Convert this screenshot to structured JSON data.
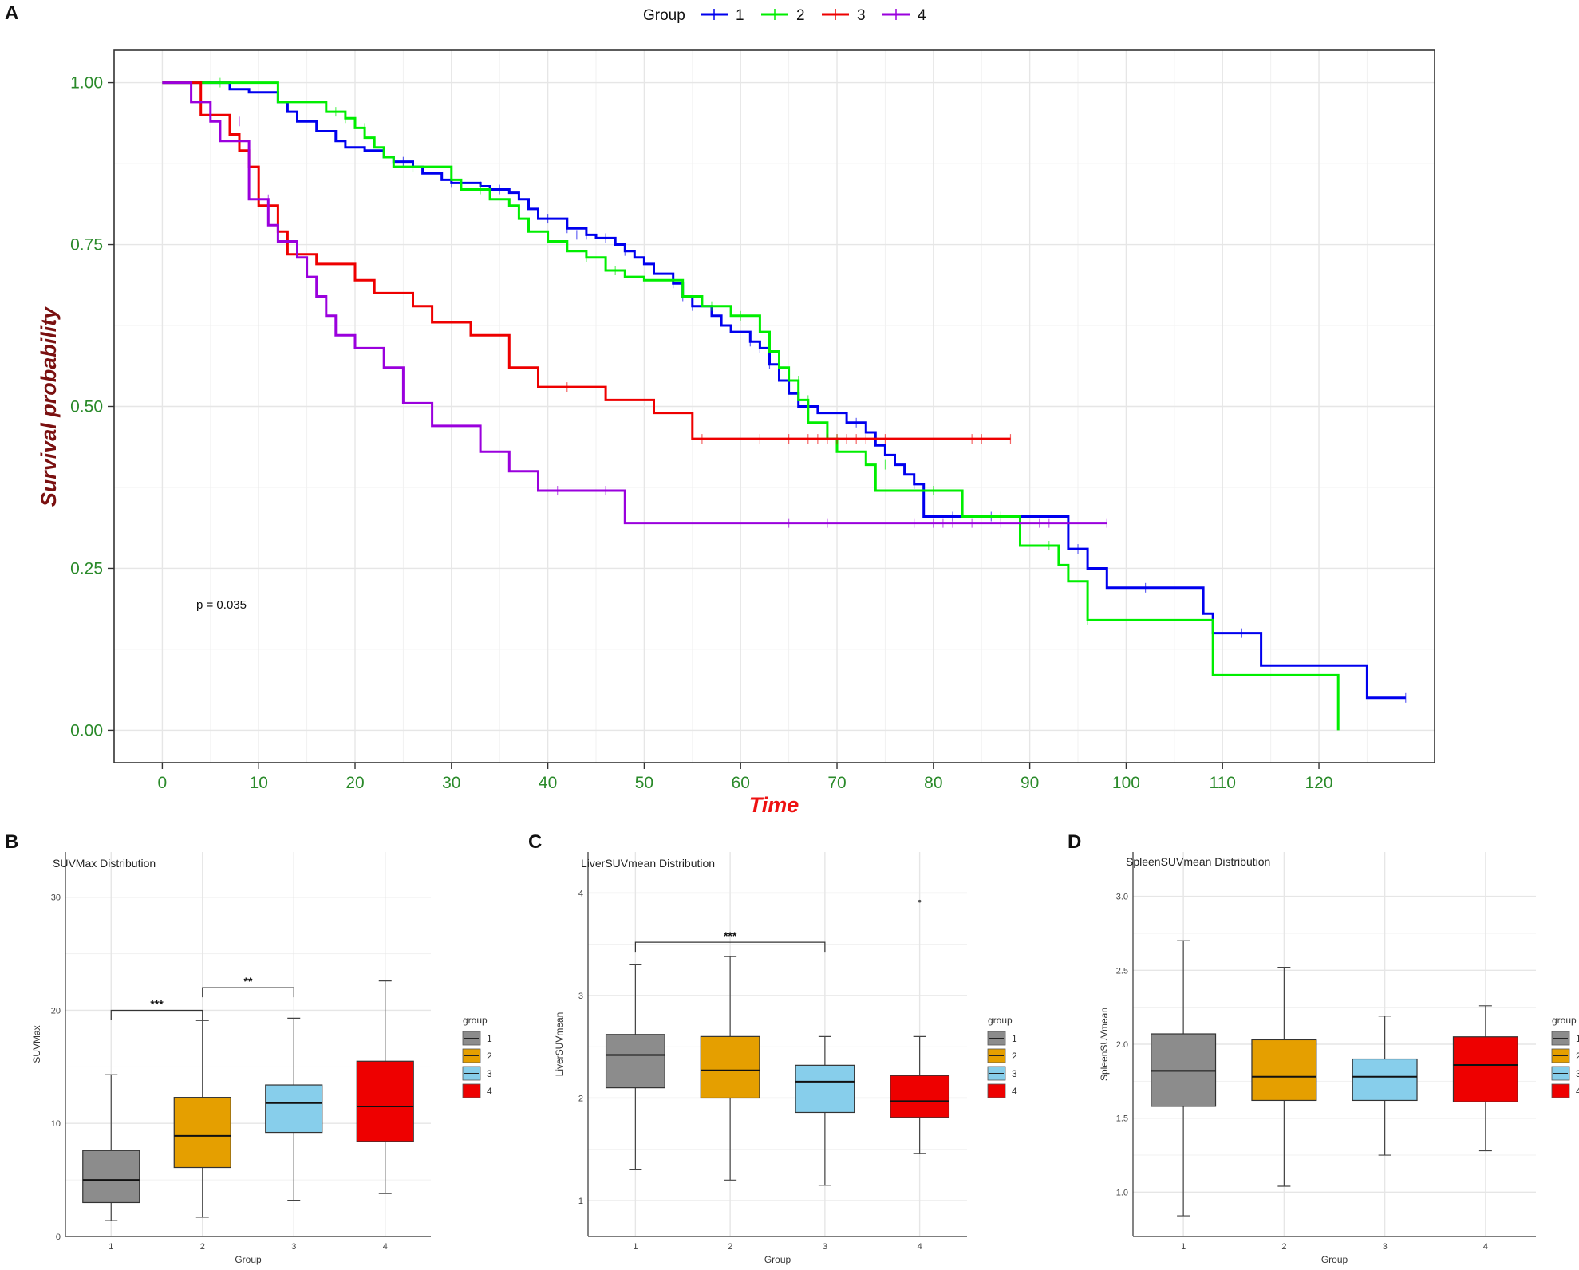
{
  "panel_labels": {
    "a": "A",
    "b": "B",
    "c": "C",
    "d": "D"
  },
  "chart_data": [
    {
      "type": "line",
      "subtype": "kaplan-meier",
      "panel": "A",
      "xlabel": "Time",
      "ylabel": "Survival probability",
      "xlim": [
        -5,
        132
      ],
      "ylim": [
        -0.05,
        1.05
      ],
      "xticks": [
        "0",
        "10",
        "20",
        "30",
        "40",
        "50",
        "60",
        "70",
        "80",
        "90",
        "100",
        "110",
        "120"
      ],
      "yticks": [
        "0.00",
        "0.25",
        "0.50",
        "0.75",
        "1.00"
      ],
      "annotation": "p = 0.035",
      "legend": {
        "title": "Group",
        "position": "top",
        "labels": [
          "1",
          "2",
          "3",
          "4"
        ]
      },
      "series": [
        {
          "name": "1",
          "color": "#0000ee",
          "steps": [
            [
              0,
              1
            ],
            [
              7,
              0.99
            ],
            [
              9,
              0.985
            ],
            [
              12,
              0.97
            ],
            [
              13,
              0.955
            ],
            [
              14,
              0.94
            ],
            [
              16,
              0.925
            ],
            [
              18,
              0.91
            ],
            [
              19,
              0.9
            ],
            [
              21,
              0.895
            ],
            [
              23,
              0.885
            ],
            [
              24,
              0.878
            ],
            [
              26,
              0.87
            ],
            [
              27,
              0.86
            ],
            [
              29,
              0.85
            ],
            [
              30,
              0.845
            ],
            [
              33,
              0.84
            ],
            [
              34,
              0.835
            ],
            [
              36,
              0.83
            ],
            [
              37,
              0.82
            ],
            [
              38,
              0.805
            ],
            [
              39,
              0.79
            ],
            [
              42,
              0.775
            ],
            [
              44,
              0.765
            ],
            [
              45,
              0.76
            ],
            [
              47,
              0.75
            ],
            [
              48,
              0.74
            ],
            [
              49,
              0.73
            ],
            [
              50,
              0.72
            ],
            [
              51,
              0.705
            ],
            [
              53,
              0.69
            ],
            [
              54,
              0.67
            ],
            [
              55,
              0.655
            ],
            [
              57,
              0.64
            ],
            [
              58,
              0.625
            ],
            [
              59,
              0.615
            ],
            [
              61,
              0.6
            ],
            [
              62,
              0.59
            ],
            [
              63,
              0.565
            ],
            [
              64,
              0.54
            ],
            [
              65,
              0.52
            ],
            [
              66,
              0.5
            ],
            [
              68,
              0.49
            ],
            [
              71,
              0.475
            ],
            [
              73,
              0.46
            ],
            [
              74,
              0.44
            ],
            [
              75,
              0.425
            ],
            [
              76,
              0.41
            ],
            [
              77,
              0.395
            ],
            [
              78,
              0.38
            ],
            [
              79,
              0.33
            ],
            [
              94,
              0.28
            ],
            [
              96,
              0.25
            ],
            [
              98,
              0.22
            ],
            [
              108,
              0.18
            ],
            [
              109,
              0.15
            ],
            [
              114,
              0.1
            ],
            [
              125,
              0.05
            ],
            [
              129,
              0.05
            ]
          ],
          "censored": [
            [
              25,
              0.878
            ],
            [
              30,
              0.845
            ],
            [
              33,
              0.84
            ],
            [
              35,
              0.835
            ],
            [
              40,
              0.79
            ],
            [
              42,
              0.775
            ],
            [
              43,
              0.765
            ],
            [
              44,
              0.765
            ],
            [
              46,
              0.76
            ],
            [
              48,
              0.74
            ],
            [
              53,
              0.69
            ],
            [
              54,
              0.67
            ],
            [
              55,
              0.655
            ],
            [
              61,
              0.6
            ],
            [
              62,
              0.59
            ],
            [
              63,
              0.565
            ],
            [
              72,
              0.475
            ],
            [
              78,
              0.38
            ],
            [
              82,
              0.33
            ],
            [
              86,
              0.33
            ],
            [
              95,
              0.28
            ],
            [
              102,
              0.22
            ],
            [
              112,
              0.15
            ],
            [
              129,
              0.05
            ]
          ]
        },
        {
          "name": "2",
          "color": "#00ee00",
          "steps": [
            [
              0,
              1
            ],
            [
              12,
              0.97
            ],
            [
              17,
              0.955
            ],
            [
              19,
              0.945
            ],
            [
              20,
              0.93
            ],
            [
              21,
              0.915
            ],
            [
              22,
              0.9
            ],
            [
              23,
              0.885
            ],
            [
              24,
              0.87
            ],
            [
              30,
              0.85
            ],
            [
              31,
              0.835
            ],
            [
              34,
              0.82
            ],
            [
              36,
              0.81
            ],
            [
              37,
              0.79
            ],
            [
              38,
              0.77
            ],
            [
              40,
              0.755
            ],
            [
              42,
              0.74
            ],
            [
              44,
              0.73
            ],
            [
              46,
              0.71
            ],
            [
              48,
              0.7
            ],
            [
              50,
              0.695
            ],
            [
              54,
              0.67
            ],
            [
              56,
              0.655
            ],
            [
              59,
              0.64
            ],
            [
              62,
              0.615
            ],
            [
              63,
              0.585
            ],
            [
              64,
              0.56
            ],
            [
              65,
              0.54
            ],
            [
              66,
              0.51
            ],
            [
              67,
              0.475
            ],
            [
              69,
              0.45
            ],
            [
              70,
              0.43
            ],
            [
              73,
              0.41
            ],
            [
              74,
              0.37
            ],
            [
              83,
              0.33
            ],
            [
              89,
              0.285
            ],
            [
              93,
              0.255
            ],
            [
              94,
              0.23
            ],
            [
              96,
              0.17
            ],
            [
              109,
              0.085
            ],
            [
              122,
              0
            ]
          ],
          "censored": [
            [
              6,
              1
            ],
            [
              18,
              0.955
            ],
            [
              19,
              0.945
            ],
            [
              21,
              0.93
            ],
            [
              26,
              0.87
            ],
            [
              33,
              0.835
            ],
            [
              44,
              0.73
            ],
            [
              47,
              0.71
            ],
            [
              57,
              0.655
            ],
            [
              60,
              0.64
            ],
            [
              66,
              0.54
            ],
            [
              67,
              0.51
            ],
            [
              70,
              0.45
            ],
            [
              75,
              0.41
            ],
            [
              80,
              0.37
            ],
            [
              87,
              0.33
            ],
            [
              92,
              0.285
            ],
            [
              96,
              0.17
            ]
          ]
        },
        {
          "name": "3",
          "color": "#ee0000",
          "steps": [
            [
              0,
              1
            ],
            [
              4,
              0.95
            ],
            [
              7,
              0.92
            ],
            [
              8,
              0.895
            ],
            [
              9,
              0.87
            ],
            [
              10,
              0.81
            ],
            [
              12,
              0.77
            ],
            [
              13,
              0.735
            ],
            [
              16,
              0.72
            ],
            [
              20,
              0.695
            ],
            [
              22,
              0.675
            ],
            [
              26,
              0.655
            ],
            [
              28,
              0.63
            ],
            [
              32,
              0.61
            ],
            [
              36,
              0.56
            ],
            [
              39,
              0.53
            ],
            [
              46,
              0.51
            ],
            [
              51,
              0.49
            ],
            [
              55,
              0.45
            ],
            [
              88,
              0.45
            ]
          ],
          "censored": [
            [
              42,
              0.53
            ],
            [
              56,
              0.45
            ],
            [
              62,
              0.45
            ],
            [
              65,
              0.45
            ],
            [
              67,
              0.45
            ],
            [
              68,
              0.45
            ],
            [
              69,
              0.45
            ],
            [
              70,
              0.45
            ],
            [
              71,
              0.45
            ],
            [
              72,
              0.45
            ],
            [
              73,
              0.45
            ],
            [
              75,
              0.45
            ],
            [
              84,
              0.45
            ],
            [
              85,
              0.45
            ],
            [
              88,
              0.45
            ]
          ]
        },
        {
          "name": "4",
          "color": "#9a00dd",
          "steps": [
            [
              0,
              1
            ],
            [
              3,
              0.97
            ],
            [
              5,
              0.94
            ],
            [
              6,
              0.91
            ],
            [
              9,
              0.82
            ],
            [
              11,
              0.78
            ],
            [
              12,
              0.755
            ],
            [
              14,
              0.73
            ],
            [
              15,
              0.7
            ],
            [
              16,
              0.67
            ],
            [
              17,
              0.64
            ],
            [
              18,
              0.61
            ],
            [
              20,
              0.59
            ],
            [
              23,
              0.56
            ],
            [
              25,
              0.505
            ],
            [
              28,
              0.47
            ],
            [
              33,
              0.43
            ],
            [
              36,
              0.4
            ],
            [
              39,
              0.37
            ],
            [
              48,
              0.32
            ],
            [
              98,
              0.32
            ]
          ],
          "censored": [
            [
              8,
              0.94
            ],
            [
              11,
              0.82
            ],
            [
              41,
              0.37
            ],
            [
              46,
              0.37
            ],
            [
              65,
              0.32
            ],
            [
              69,
              0.32
            ],
            [
              78,
              0.32
            ],
            [
              80,
              0.32
            ],
            [
              81,
              0.32
            ],
            [
              82,
              0.32
            ],
            [
              84,
              0.32
            ],
            [
              87,
              0.32
            ],
            [
              89,
              0.32
            ],
            [
              91,
              0.32
            ],
            [
              92,
              0.32
            ],
            [
              98,
              0.32
            ]
          ]
        }
      ]
    },
    {
      "type": "box",
      "panel": "B",
      "title": "SUVMax Distribution",
      "xlabel": "Group",
      "ylabel": "SUVMax",
      "categories": [
        "1",
        "2",
        "3",
        "4"
      ],
      "ylim": [
        0,
        34
      ],
      "yticks": [
        "0",
        "10",
        "20",
        "30"
      ],
      "legend": {
        "title": "group",
        "labels": [
          "1",
          "2",
          "3",
          "4"
        ]
      },
      "boxes": [
        {
          "group": "1",
          "min": 1.4,
          "q1": 3.0,
          "median": 5.0,
          "q3": 7.6,
          "max": 14.3,
          "color": "#8c8c8c"
        },
        {
          "group": "2",
          "min": 1.7,
          "q1": 6.1,
          "median": 8.9,
          "q3": 12.3,
          "max": 19.1,
          "color": "#e59f00"
        },
        {
          "group": "3",
          "min": 3.2,
          "q1": 9.2,
          "median": 11.8,
          "q3": 13.4,
          "max": 19.3,
          "color": "#87ceeb"
        },
        {
          "group": "4",
          "min": 3.8,
          "q1": 8.4,
          "median": 11.5,
          "q3": 15.5,
          "max": 22.6,
          "color": "#ee0000"
        }
      ],
      "significance": [
        {
          "from": "1",
          "to": "2",
          "y": 20.0,
          "label": "***"
        },
        {
          "from": "2",
          "to": "3",
          "y": 22.0,
          "label": "**"
        }
      ]
    },
    {
      "type": "box",
      "panel": "C",
      "title": "LiverSUVmean Distribution",
      "xlabel": "Group",
      "ylabel": "LiverSUVmean",
      "categories": [
        "1",
        "2",
        "3",
        "4"
      ],
      "ylim": [
        0.65,
        4.4
      ],
      "yticks": [
        "1",
        "2",
        "3",
        "4"
      ],
      "legend": {
        "title": "group",
        "labels": [
          "1",
          "2",
          "3",
          "4"
        ]
      },
      "boxes": [
        {
          "group": "1",
          "min": 1.3,
          "q1": 2.1,
          "median": 2.42,
          "q3": 2.62,
          "max": 3.3,
          "color": "#8c8c8c"
        },
        {
          "group": "2",
          "min": 1.2,
          "q1": 2.0,
          "median": 2.27,
          "q3": 2.6,
          "max": 3.38,
          "color": "#e59f00"
        },
        {
          "group": "3",
          "min": 1.15,
          "q1": 1.86,
          "median": 2.16,
          "q3": 2.32,
          "max": 2.6,
          "color": "#87ceeb"
        },
        {
          "group": "4",
          "min": 1.46,
          "q1": 1.81,
          "median": 1.97,
          "q3": 2.22,
          "max": 2.6,
          "color": "#ee0000"
        }
      ],
      "outliers": [
        {
          "group": "4",
          "value": 3.92
        }
      ],
      "significance": [
        {
          "from": "1",
          "to": "3",
          "y": 3.52,
          "label": "***"
        }
      ]
    },
    {
      "type": "box",
      "panel": "D",
      "title": "SpleenSUVmean Distribution",
      "xlabel": "Group",
      "ylabel": "SpleenSUVmean",
      "categories": [
        "1",
        "2",
        "3",
        "4"
      ],
      "ylim": [
        0.7,
        3.3
      ],
      "yticks": [
        "1.0",
        "1.5",
        "2.0",
        "2.5",
        "3.0"
      ],
      "legend": {
        "title": "group",
        "labels": [
          "1",
          "2",
          "3",
          "4"
        ]
      },
      "boxes": [
        {
          "group": "1",
          "min": 0.84,
          "q1": 1.58,
          "median": 1.82,
          "q3": 2.07,
          "max": 2.7,
          "color": "#8c8c8c"
        },
        {
          "group": "2",
          "min": 1.04,
          "q1": 1.62,
          "median": 1.78,
          "q3": 2.03,
          "max": 2.52,
          "color": "#e59f00"
        },
        {
          "group": "3",
          "min": 1.25,
          "q1": 1.62,
          "median": 1.78,
          "q3": 1.9,
          "max": 2.19,
          "color": "#87ceeb"
        },
        {
          "group": "4",
          "min": 1.28,
          "q1": 1.61,
          "median": 1.86,
          "q3": 2.05,
          "max": 2.26,
          "color": "#ee0000"
        }
      ]
    }
  ]
}
